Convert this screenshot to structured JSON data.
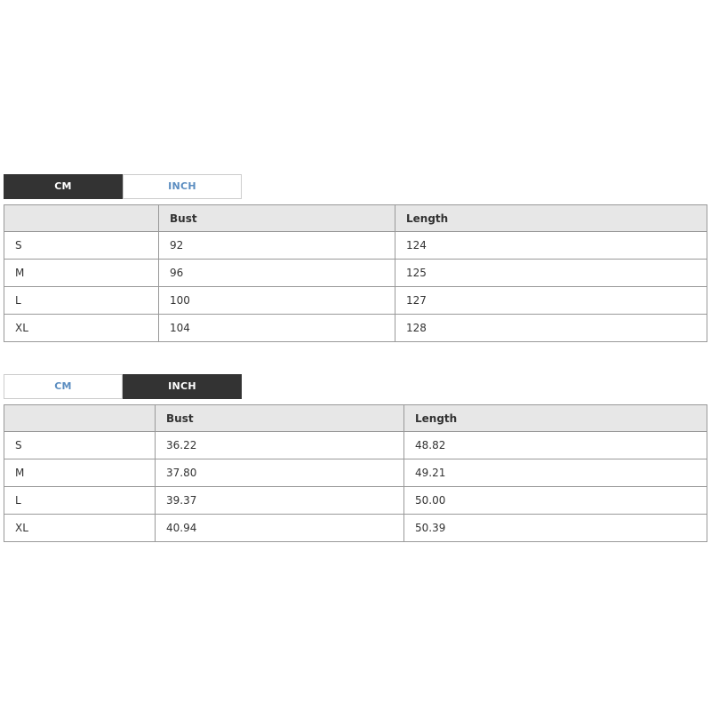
{
  "colors": {
    "accent_dark": "#333333",
    "accent_blue": "#5b8dc0",
    "header_bg": "#e7e7e7",
    "border_gray": "#999999",
    "tab_border": "#cccccc",
    "text_color": "#333333",
    "page_bg": "#ffffff"
  },
  "sections": [
    {
      "unit": "cm",
      "tabs": [
        {
          "label": "CM",
          "active": true
        },
        {
          "label": "INCH",
          "active": false
        }
      ],
      "table": {
        "columns": [
          "",
          "Bust",
          "Length"
        ],
        "rows": [
          {
            "size": "S",
            "bust": "92",
            "length": "124"
          },
          {
            "size": "M",
            "bust": "96",
            "length": "125"
          },
          {
            "size": "L",
            "bust": "100",
            "length": "127"
          },
          {
            "size": "XL",
            "bust": "104",
            "length": "128"
          }
        ]
      }
    },
    {
      "unit": "inch",
      "tabs": [
        {
          "label": "CM",
          "active": false
        },
        {
          "label": "INCH",
          "active": true
        }
      ],
      "table": {
        "columns": [
          "",
          "Bust",
          "Length"
        ],
        "rows": [
          {
            "size": "S",
            "bust": "36.22",
            "length": "48.82"
          },
          {
            "size": "M",
            "bust": "37.80",
            "length": "49.21"
          },
          {
            "size": "L",
            "bust": "39.37",
            "length": "50.00"
          },
          {
            "size": "XL",
            "bust": "40.94",
            "length": "50.39"
          }
        ]
      }
    }
  ]
}
